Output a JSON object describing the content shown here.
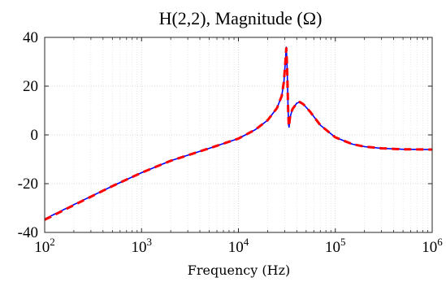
{
  "chart_data": {
    "type": "line",
    "title": "H(2,2), Magnitude (Ω)",
    "xlabel": "Frequency (Hz)",
    "ylabel": "",
    "xscale": "log",
    "xlim": [
      100,
      1000000
    ],
    "ylim": [
      -40,
      40
    ],
    "grid": true,
    "legend": "none",
    "xticks": [
      {
        "value": 100,
        "base": "10",
        "exp": "2"
      },
      {
        "value": 1000,
        "base": "10",
        "exp": "3"
      },
      {
        "value": 10000,
        "base": "10",
        "exp": "4"
      },
      {
        "value": 100000,
        "base": "10",
        "exp": "5"
      },
      {
        "value": 1000000,
        "base": "10",
        "exp": "6"
      }
    ],
    "yticks": [
      {
        "value": 40,
        "label": "40"
      },
      {
        "value": 20,
        "label": "20"
      },
      {
        "value": 0,
        "label": "0"
      },
      {
        "value": -20,
        "label": "-20"
      },
      {
        "value": -40,
        "label": "-40"
      }
    ],
    "series": [
      {
        "style": "solid",
        "color": "#0000ff",
        "points": [
          [
            100,
            -34.5
          ],
          [
            200,
            -28.6
          ],
          [
            500,
            -21.0
          ],
          [
            1000,
            -15.5
          ],
          [
            2000,
            -10.6
          ],
          [
            5000,
            -5.5
          ],
          [
            10000,
            -1.5
          ],
          [
            15000,
            2.2
          ],
          [
            20000,
            6.0
          ],
          [
            25000,
            11.0
          ],
          [
            28000,
            16.0
          ],
          [
            29500,
            22.0
          ],
          [
            30500,
            30.0
          ],
          [
            31200,
            36.0
          ],
          [
            31800,
            28.0
          ],
          [
            32500,
            12.0
          ],
          [
            33000,
            4.0
          ],
          [
            33300,
            3.2
          ],
          [
            34000,
            7.0
          ],
          [
            36000,
            10.5
          ],
          [
            40000,
            13.0
          ],
          [
            43000,
            13.5
          ],
          [
            47000,
            12.5
          ],
          [
            55000,
            9.5
          ],
          [
            70000,
            4.0
          ],
          [
            100000,
            -1.0
          ],
          [
            150000,
            -3.8
          ],
          [
            200000,
            -4.8
          ],
          [
            300000,
            -5.5
          ],
          [
            500000,
            -5.9
          ],
          [
            1000000,
            -6.0
          ]
        ]
      },
      {
        "style": "dashed",
        "color": "#ff0000",
        "points": [
          [
            100,
            -34.8
          ],
          [
            200,
            -28.8
          ],
          [
            500,
            -21.0
          ],
          [
            1000,
            -15.5
          ],
          [
            2000,
            -10.6
          ],
          [
            5000,
            -5.5
          ],
          [
            10000,
            -1.5
          ],
          [
            15000,
            2.2
          ],
          [
            20000,
            6.0
          ],
          [
            25000,
            11.0
          ],
          [
            28000,
            16.0
          ],
          [
            29500,
            22.0
          ],
          [
            30500,
            30.0
          ],
          [
            31200,
            35.5
          ],
          [
            31800,
            28.0
          ],
          [
            32500,
            12.0
          ],
          [
            33000,
            4.5
          ],
          [
            33300,
            3.5
          ],
          [
            34000,
            7.0
          ],
          [
            36000,
            10.5
          ],
          [
            40000,
            13.0
          ],
          [
            43000,
            13.5
          ],
          [
            47000,
            12.5
          ],
          [
            55000,
            9.5
          ],
          [
            70000,
            4.0
          ],
          [
            100000,
            -1.0
          ],
          [
            150000,
            -3.8
          ],
          [
            200000,
            -4.8
          ],
          [
            300000,
            -5.5
          ],
          [
            500000,
            -5.9
          ],
          [
            1000000,
            -6.0
          ]
        ]
      }
    ]
  }
}
